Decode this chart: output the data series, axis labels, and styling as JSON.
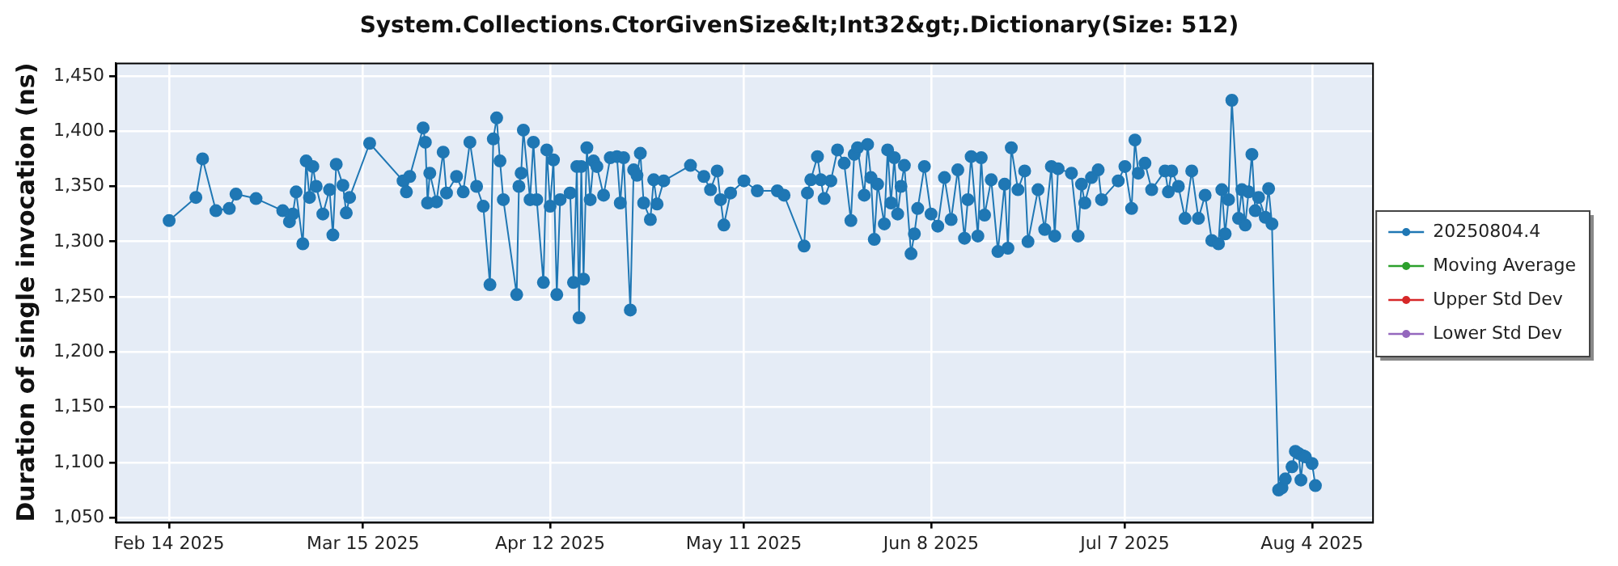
{
  "chart_data": {
    "type": "line",
    "title": "System.Collections.CtorGivenSize&lt;Int32&gt;.Dictionary(Size: 512)",
    "ylabel": "Duration of single invocation (ns)",
    "xlim": [
      "2025-02-06",
      "2025-08-13"
    ],
    "xticks": [
      {
        "value": "2025-02-14",
        "label": "Feb 14 2025"
      },
      {
        "value": "2025-03-15",
        "label": "Mar 15 2025"
      },
      {
        "value": "2025-04-12",
        "label": "Apr 12 2025"
      },
      {
        "value": "2025-05-11",
        "label": "May 11 2025"
      },
      {
        "value": "2025-06-08",
        "label": "Jun 8 2025"
      },
      {
        "value": "2025-07-07",
        "label": "Jul 7 2025"
      },
      {
        "value": "2025-08-04",
        "label": "Aug 4 2025"
      }
    ],
    "ylim": [
      1046,
      1462
    ],
    "yticks": [
      {
        "value": 1050,
        "label": "1,050"
      },
      {
        "value": 1100,
        "label": "1,100"
      },
      {
        "value": 1150,
        "label": "1,150"
      },
      {
        "value": 1200,
        "label": "1,200"
      },
      {
        "value": 1250,
        "label": "1,250"
      },
      {
        "value": 1300,
        "label": "1,300"
      },
      {
        "value": 1350,
        "label": "1,350"
      },
      {
        "value": 1400,
        "label": "1,400"
      },
      {
        "value": 1450,
        "label": "1,450"
      }
    ],
    "grid": true,
    "legend": "right",
    "marker": "circle",
    "line_style": "solid",
    "series": [
      {
        "name": "20250804.4",
        "color": "#1f77b4",
        "x": [
          "2025-02-14",
          "2025-02-18",
          "2025-02-19",
          "2025-02-21",
          "2025-02-23",
          "2025-02-24",
          "2025-02-27",
          "2025-03-03",
          "2025-03-04",
          "2025-03-04T12:00",
          "2025-03-05",
          "2025-03-06",
          "2025-03-06T12:00",
          "2025-03-07",
          "2025-03-07T12:00",
          "2025-03-08",
          "2025-03-09",
          "2025-03-10",
          "2025-03-10T12:00",
          "2025-03-11",
          "2025-03-12",
          "2025-03-12T12:00",
          "2025-03-13",
          "2025-03-16",
          "2025-03-21",
          "2025-03-21T12:00",
          "2025-03-22",
          "2025-03-24",
          "2025-03-24T08:00",
          "2025-03-24T16:00",
          "2025-03-25",
          "2025-03-26",
          "2025-03-27",
          "2025-03-27T12:00",
          "2025-03-29",
          "2025-03-30",
          "2025-03-31",
          "2025-04-01",
          "2025-04-02",
          "2025-04-03",
          "2025-04-03T12:00",
          "2025-04-04",
          "2025-04-04T12:00",
          "2025-04-05",
          "2025-04-07",
          "2025-04-07T08:00",
          "2025-04-07T16:00",
          "2025-04-08",
          "2025-04-09",
          "2025-04-09T12:00",
          "2025-04-10",
          "2025-04-11",
          "2025-04-11T12:00",
          "2025-04-12",
          "2025-04-12T12:00",
          "2025-04-13",
          "2025-04-13T12:00",
          "2025-04-15",
          "2025-04-15T12:00",
          "2025-04-16",
          "2025-04-16T08:00",
          "2025-04-16T16:00",
          "2025-04-17",
          "2025-04-17T12:00",
          "2025-04-18",
          "2025-04-18T12:00",
          "2025-04-19",
          "2025-04-20",
          "2025-04-21",
          "2025-04-22",
          "2025-04-22T12:00",
          "2025-04-23",
          "2025-04-24",
          "2025-04-24T12:00",
          "2025-04-25",
          "2025-04-25T12:00",
          "2025-04-26",
          "2025-04-27",
          "2025-04-27T12:00",
          "2025-04-28",
          "2025-04-29",
          "2025-05-03",
          "2025-05-05",
          "2025-05-06",
          "2025-05-07",
          "2025-05-07T12:00",
          "2025-05-08",
          "2025-05-09",
          "2025-05-11",
          "2025-05-13",
          "2025-05-16",
          "2025-05-17",
          "2025-05-20",
          "2025-05-20T12:00",
          "2025-05-21",
          "2025-05-22",
          "2025-05-22T12:00",
          "2025-05-23",
          "2025-05-24",
          "2025-05-25",
          "2025-05-26",
          "2025-05-27",
          "2025-05-27T12:00",
          "2025-05-28",
          "2025-05-29",
          "2025-05-29T12:00",
          "2025-05-30",
          "2025-05-30T12:00",
          "2025-05-31",
          "2025-06-01",
          "2025-06-01T12:00",
          "2025-06-02",
          "2025-06-02T12:00",
          "2025-06-03",
          "2025-06-03T12:00",
          "2025-06-04",
          "2025-06-05",
          "2025-06-05T12:00",
          "2025-06-06",
          "2025-06-07",
          "2025-06-08",
          "2025-06-09",
          "2025-06-10",
          "2025-06-11",
          "2025-06-12",
          "2025-06-13",
          "2025-06-13T12:00",
          "2025-06-14",
          "2025-06-15",
          "2025-06-15T12:00",
          "2025-06-16",
          "2025-06-17",
          "2025-06-18",
          "2025-06-19",
          "2025-06-19T12:00",
          "2025-06-20",
          "2025-06-21",
          "2025-06-22",
          "2025-06-22T12:00",
          "2025-06-24",
          "2025-06-25",
          "2025-06-26",
          "2025-06-26T12:00",
          "2025-06-27",
          "2025-06-29",
          "2025-06-30",
          "2025-06-30T12:00",
          "2025-07-01",
          "2025-07-02",
          "2025-07-03",
          "2025-07-03T12:00",
          "2025-07-06",
          "2025-07-07",
          "2025-07-08",
          "2025-07-08T12:00",
          "2025-07-09",
          "2025-07-10",
          "2025-07-11",
          "2025-07-13",
          "2025-07-13T12:00",
          "2025-07-14",
          "2025-07-15",
          "2025-07-16",
          "2025-07-17",
          "2025-07-18",
          "2025-07-19",
          "2025-07-20",
          "2025-07-21",
          "2025-07-21T12:00",
          "2025-07-22",
          "2025-07-22T12:00",
          "2025-07-23",
          "2025-07-24",
          "2025-07-24T12:00",
          "2025-07-25",
          "2025-07-25T12:00",
          "2025-07-26",
          "2025-07-26T12:00",
          "2025-07-27",
          "2025-07-28",
          "2025-07-28T12:00",
          "2025-07-29",
          "2025-07-30",
          "2025-07-30T12:00",
          "2025-07-31",
          "2025-08-01",
          "2025-08-01T12:00",
          "2025-08-02",
          "2025-08-02T08:00",
          "2025-08-02T16:00",
          "2025-08-03",
          "2025-08-04",
          "2025-08-04T12:00"
        ],
        "values": [
          1319,
          1340,
          1375,
          1328,
          1330,
          1343,
          1339,
          1328,
          1318,
          1325,
          1345,
          1298,
          1373,
          1340,
          1368,
          1350,
          1325,
          1347,
          1306,
          1370,
          1351,
          1326,
          1340,
          1389,
          1355,
          1345,
          1359,
          1403,
          1390,
          1335,
          1362,
          1336,
          1381,
          1344,
          1359,
          1345,
          1390,
          1350,
          1332,
          1261,
          1393,
          1412,
          1373,
          1338,
          1252,
          1350,
          1362,
          1401,
          1338,
          1390,
          1338,
          1263,
          1383,
          1332,
          1374,
          1252,
          1338,
          1344,
          1263,
          1368,
          1231,
          1368,
          1266,
          1385,
          1338,
          1373,
          1368,
          1342,
          1376,
          1377,
          1335,
          1376,
          1238,
          1365,
          1360,
          1380,
          1335,
          1320,
          1356,
          1334,
          1355,
          1369,
          1359,
          1347,
          1364,
          1338,
          1315,
          1344,
          1355,
          1346,
          1346,
          1342,
          1296,
          1344,
          1356,
          1377,
          1356,
          1339,
          1355,
          1383,
          1371,
          1319,
          1379,
          1385,
          1342,
          1388,
          1358,
          1302,
          1352,
          1316,
          1383,
          1335,
          1376,
          1325,
          1350,
          1369,
          1289,
          1307,
          1330,
          1368,
          1325,
          1314,
          1358,
          1320,
          1365,
          1303,
          1338,
          1377,
          1305,
          1376,
          1324,
          1356,
          1291,
          1352,
          1294,
          1385,
          1347,
          1364,
          1300,
          1347,
          1311,
          1368,
          1305,
          1366,
          1362,
          1305,
          1352,
          1335,
          1358,
          1365,
          1338,
          1355,
          1368,
          1330,
          1392,
          1362,
          1371,
          1347,
          1364,
          1345,
          1364,
          1350,
          1321,
          1364,
          1321,
          1342,
          1301,
          1298,
          1347,
          1307,
          1338,
          1428,
          1321,
          1347,
          1315,
          1345,
          1379,
          1328,
          1340,
          1322,
          1348,
          1316,
          1075,
          1077,
          1085,
          1096,
          1110,
          1108,
          1084,
          1106,
          1105,
          1099,
          1079
        ]
      },
      {
        "name": "Moving Average",
        "color": "#2ca02c"
      },
      {
        "name": "Upper Std Dev",
        "color": "#d62728"
      },
      {
        "name": "Lower Std Dev",
        "color": "#9467bd"
      }
    ]
  }
}
